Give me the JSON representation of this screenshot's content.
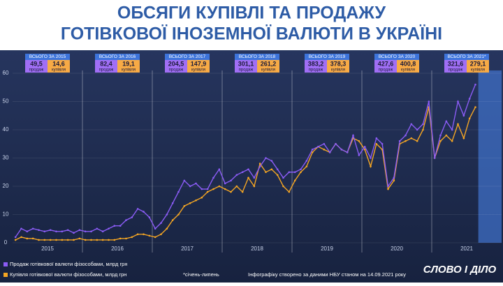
{
  "chart_data": {
    "type": "line",
    "title": "ОБСЯГИ КУПІВЛІ ТА ПРОДАЖУ",
    "subtitle": "ГОТІВКОВОЇ ІНОЗЕМНОЇ ВАЛЮТИ В УКРАЇНІ",
    "years": [
      "2015",
      "2016",
      "2017",
      "2018",
      "2019",
      "2020",
      "2021"
    ],
    "ylim": [
      0,
      60
    ],
    "yticks": [
      0,
      10,
      20,
      30,
      40,
      50,
      60
    ],
    "grid": true,
    "sales_label": "продаж",
    "purchases_label": "купівля",
    "totals": [
      {
        "label": "ВСЬОГО ЗА 2015",
        "sales": "49,5",
        "purchases": "14,6"
      },
      {
        "label": "ВСЬОГО ЗА 2016",
        "sales": "82,4",
        "purchases": "19,1"
      },
      {
        "label": "ВСЬОГО ЗА 2017",
        "sales": "204,5",
        "purchases": "147,9"
      },
      {
        "label": "ВСЬОГО ЗА 2018",
        "sales": "301,1",
        "purchases": "261,2"
      },
      {
        "label": "ВСЬОГО ЗА 2019",
        "sales": "383,2",
        "purchases": "378,3"
      },
      {
        "label": "ВСЬОГО ЗА 2020",
        "sales": "427,6",
        "purchases": "400,8"
      },
      {
        "label": "ВСЬОГО ЗА 2021*",
        "sales": "321,6",
        "purchases": "279,1"
      }
    ],
    "series": [
      {
        "name": "Продаж готівкової валюти фізособами, млрд грн",
        "color": "#8b5cf6",
        "values": [
          2,
          5,
          4,
          5,
          4.5,
          4,
          4.5,
          4,
          4,
          4.5,
          3.5,
          4.5,
          4,
          4,
          5,
          4,
          5,
          6,
          6,
          8,
          9,
          12,
          11,
          9,
          5,
          7,
          10,
          14,
          18,
          22,
          20,
          21,
          19,
          19,
          23,
          26,
          21,
          22,
          24,
          25,
          26,
          23,
          27,
          30,
          29,
          26,
          23,
          25,
          25,
          26,
          29,
          33,
          34,
          35,
          32,
          35,
          33,
          32,
          38,
          31,
          34,
          30,
          37,
          35,
          20,
          23,
          36,
          38,
          42,
          40,
          42,
          50,
          30,
          38,
          43,
          40,
          50,
          45,
          51,
          56
        ]
      },
      {
        "name": "Купівля готівкової валюти фізособами, млрд грн",
        "color": "#f5a623",
        "values": [
          1,
          2,
          1.5,
          1.5,
          1,
          1,
          1,
          1,
          1,
          1,
          1,
          1.5,
          1,
          1,
          1,
          1,
          1,
          1,
          1.5,
          1.5,
          2,
          3,
          3,
          2.5,
          2,
          3,
          5,
          8,
          10,
          13,
          14,
          15,
          16,
          18,
          19,
          20,
          19,
          18,
          20,
          18,
          23,
          20,
          28,
          25,
          26,
          24,
          20,
          18,
          22,
          25,
          27,
          32,
          34,
          33,
          32,
          35,
          33,
          32,
          37,
          36,
          33,
          27,
          35,
          33,
          19,
          22,
          35,
          36,
          37,
          36,
          40,
          48,
          30,
          36,
          38,
          36,
          42,
          37,
          44,
          48
        ]
      }
    ],
    "note": "*січень-липень",
    "source": "Інфографіку створено за даними НБУ станом на 14.09.2021 року",
    "logo": "СЛОВО І ДІЛО"
  }
}
